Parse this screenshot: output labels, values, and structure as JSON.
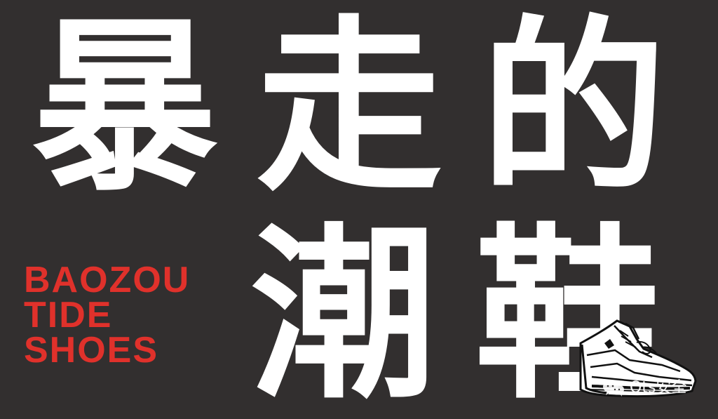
{
  "title_line_1": [
    "暴",
    "走",
    "的"
  ],
  "title_line_2": [
    "潮",
    "鞋"
  ],
  "english_lines": [
    "BAOZOU",
    "TIDE",
    "SHOES"
  ],
  "watermark_text": "Ots安全",
  "colors": {
    "background": "#322f2f",
    "main_text": "#ffffff",
    "english_text": "#e0312b"
  },
  "icons": {
    "shoe": "sneaker-icon",
    "watermark": "wechat-icon"
  }
}
